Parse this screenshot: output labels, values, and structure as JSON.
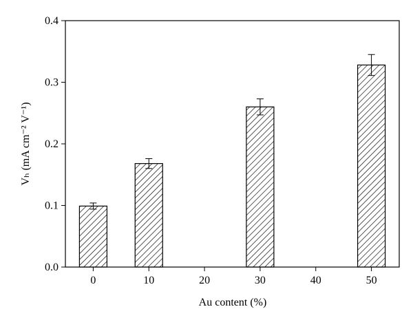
{
  "chart_data": {
    "type": "bar",
    "x_label": "Au content (%)",
    "y_label": "Vₕ (mA cm⁻² V⁻¹)",
    "x": [
      0,
      10,
      30,
      50
    ],
    "values": [
      0.099,
      0.168,
      0.26,
      0.328
    ],
    "errors": [
      0.005,
      0.008,
      0.013,
      0.017
    ],
    "color": "#000000",
    "xlim": [
      -5,
      55
    ],
    "xticks": [
      0,
      10,
      20,
      30,
      40,
      50
    ],
    "ylim": [
      0,
      0.4
    ],
    "yticks": [
      {
        "value": 0,
        "label": "0.0"
      },
      0.1,
      0.2,
      0.3,
      0.4
    ],
    "grid": false
  }
}
